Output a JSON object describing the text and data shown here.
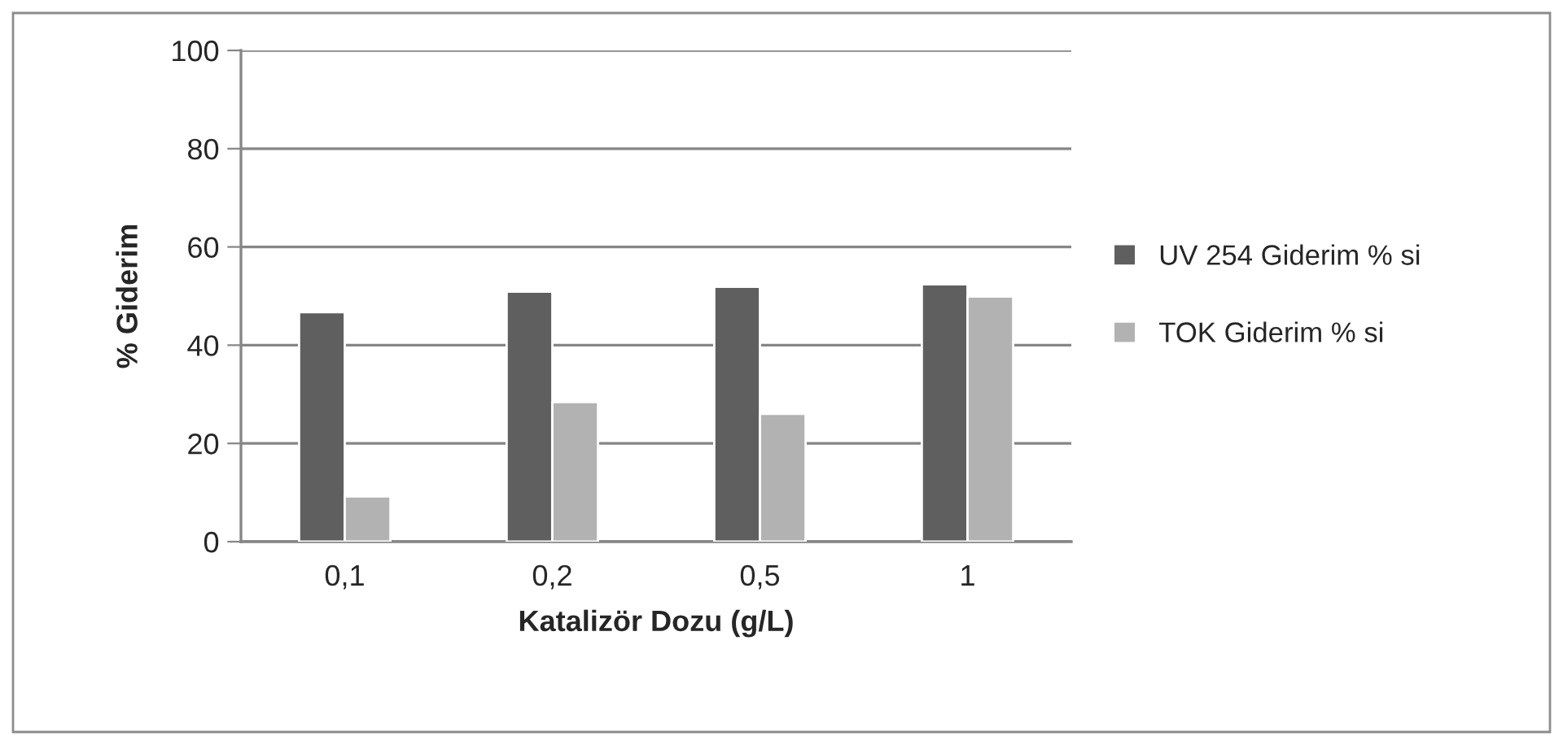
{
  "chart_data": {
    "type": "bar",
    "xlabel": "Katalizör Dozu (g/L)",
    "ylabel": "% Giderim",
    "categories": [
      "0,1",
      "0,2",
      "0,5",
      "1"
    ],
    "series": [
      {
        "name": "UV 254 Giderim % si",
        "color": "#5f5f5f",
        "values": [
          46.7,
          50.9,
          51.9,
          52.4
        ]
      },
      {
        "name": "TOK Giderim % si",
        "color": "#b2b2b2",
        "values": [
          9.2,
          28.4,
          26.0,
          49.9
        ]
      }
    ],
    "ylim": [
      0,
      100
    ],
    "yticks": [
      0,
      20,
      40,
      60,
      80,
      100
    ],
    "grid": "y",
    "legend": "right"
  }
}
